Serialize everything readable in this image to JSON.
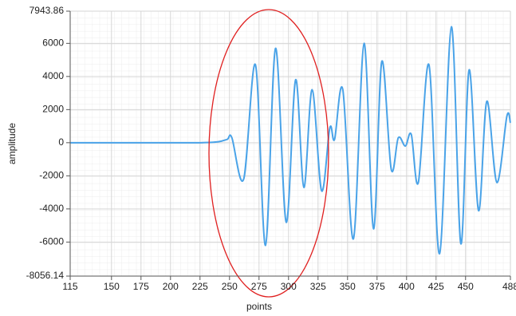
{
  "chart_data": {
    "type": "line",
    "x_label": "points",
    "y_label": "amplitude",
    "x": [
      115,
      130,
      150,
      175,
      200,
      225,
      240,
      248,
      252,
      262,
      272,
      280.5,
      289,
      298,
      306,
      313,
      320,
      328,
      335,
      339,
      346,
      355,
      364,
      372,
      379,
      387,
      393,
      399,
      404,
      410,
      419,
      428,
      438,
      446,
      453,
      461,
      468,
      476.5,
      485,
      488
    ],
    "series": [
      {
        "color": "#4aa3e8",
        "values": [
          0,
          0,
          0,
          0,
          0,
          0,
          50,
          200,
          300,
          -2200,
          4700,
          -6200,
          5700,
          -4800,
          3800,
          -2700,
          3200,
          -2900,
          900,
          200,
          3200,
          -5800,
          6000,
          -5200,
          4900,
          -1600,
          300,
          -200,
          500,
          -2400,
          4700,
          -6700,
          7000,
          -6100,
          4400,
          -4100,
          2500,
          -2400,
          1600,
          1200
        ]
      }
    ],
    "xlim": [
      115,
      488
    ],
    "ylim": [
      -8056.14,
      7943.86
    ],
    "xticks": [
      115,
      150,
      175,
      200,
      225,
      250,
      275,
      300,
      325,
      350,
      375,
      400,
      425,
      450,
      488
    ],
    "yticks": [
      -8056.14,
      -6000,
      -4000,
      -2000,
      0,
      2000,
      4000,
      6000,
      7943.86
    ],
    "grid": true
  }
}
